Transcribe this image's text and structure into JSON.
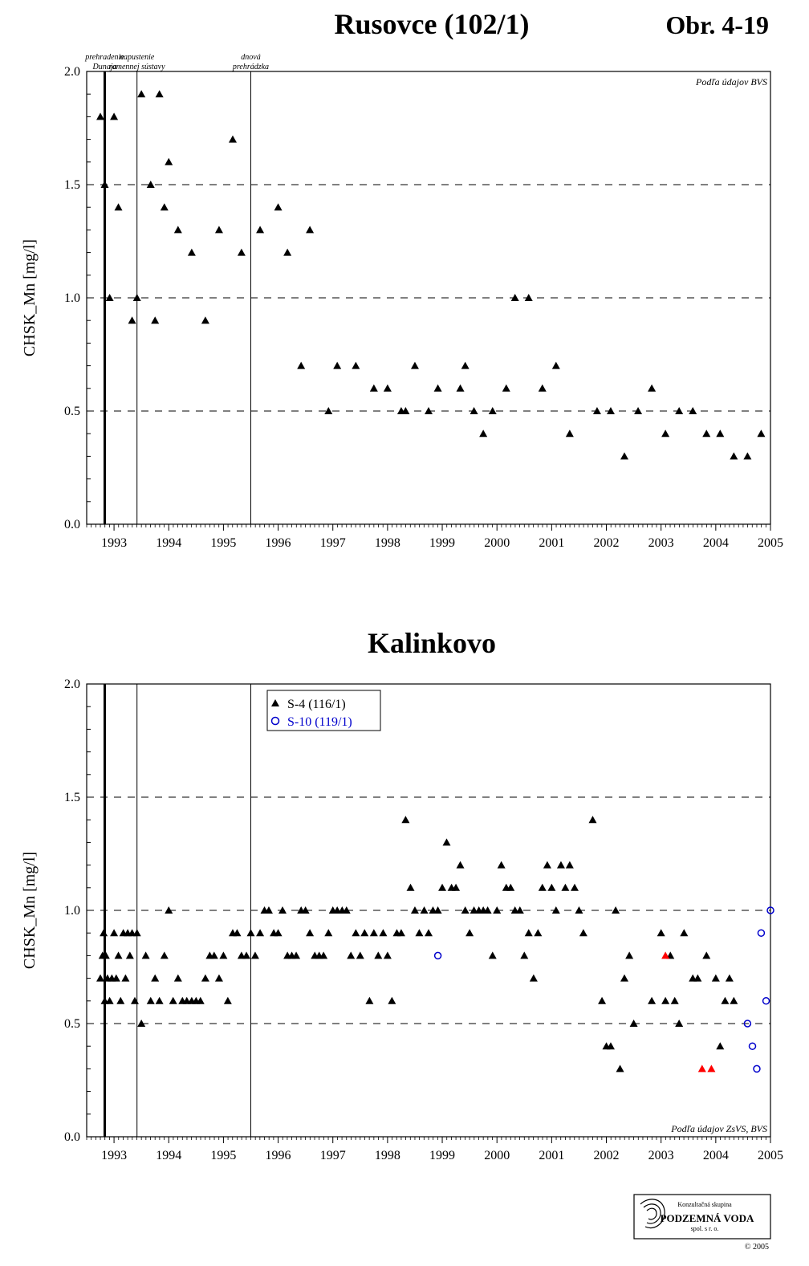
{
  "page": {
    "figure_id": "Obr. 4-19",
    "copyright": "© 2005",
    "logo": {
      "line1": "Konzultačná skupina",
      "line2": "PODZEMNÁ VODA",
      "line3": "spol. s r. o."
    }
  },
  "annotations": [
    {
      "line1": "prehradenie",
      "line2": "Dunaja",
      "x": 1992.83
    },
    {
      "line1": "napustenie",
      "line2": "ramennej sústavy",
      "x": 1993.42
    },
    {
      "line1": "dnová",
      "line2": "prehrádzka",
      "x": 1995.5
    }
  ],
  "chart_data": [
    {
      "type": "scatter",
      "title": "Rusovce (102/1)",
      "xlabel": "",
      "ylabel": "CHSK_Mn [mg/l]",
      "xlim": [
        1992.5,
        2005
      ],
      "ylim": [
        0,
        2
      ],
      "x_ticks": [
        "1993",
        "1994",
        "1995",
        "1996",
        "1997",
        "1998",
        "1999",
        "2000",
        "2001",
        "2002",
        "2003",
        "2004",
        "2005"
      ],
      "y_ticks": [
        "0.0",
        "0.5",
        "1.0",
        "1.5",
        "2.0"
      ],
      "grid": "dashed at 0.5, 1.0, 1.5",
      "source_note": "Podľa údajov BVS",
      "series": [
        {
          "marker": "triangle",
          "color": "#000000",
          "points": [
            [
              1992.75,
              1.8
            ],
            [
              1992.83,
              1.5
            ],
            [
              1992.92,
              1.0
            ],
            [
              1993.0,
              1.8
            ],
            [
              1993.08,
              1.4
            ],
            [
              1993.33,
              0.9
            ],
            [
              1993.42,
              1.0
            ],
            [
              1993.5,
              1.9
            ],
            [
              1993.67,
              1.5
            ],
            [
              1993.75,
              0.9
            ],
            [
              1993.83,
              1.9
            ],
            [
              1993.92,
              1.4
            ],
            [
              1994.0,
              1.6
            ],
            [
              1994.17,
              1.3
            ],
            [
              1994.42,
              1.2
            ],
            [
              1994.67,
              0.9
            ],
            [
              1994.92,
              1.3
            ],
            [
              1995.17,
              1.7
            ],
            [
              1995.33,
              1.2
            ],
            [
              1995.67,
              1.3
            ],
            [
              1996.0,
              1.4
            ],
            [
              1996.17,
              1.2
            ],
            [
              1996.42,
              0.7
            ],
            [
              1996.58,
              1.3
            ],
            [
              1996.92,
              0.5
            ],
            [
              1997.08,
              0.7
            ],
            [
              1997.42,
              0.7
            ],
            [
              1997.75,
              0.6
            ],
            [
              1998.0,
              0.6
            ],
            [
              1998.25,
              0.5
            ],
            [
              1998.33,
              0.5
            ],
            [
              1998.5,
              0.7
            ],
            [
              1998.75,
              0.5
            ],
            [
              1998.92,
              0.6
            ],
            [
              1999.33,
              0.6
            ],
            [
              1999.42,
              0.7
            ],
            [
              1999.58,
              0.5
            ],
            [
              1999.75,
              0.4
            ],
            [
              1999.92,
              0.5
            ],
            [
              2000.17,
              0.6
            ],
            [
              2000.33,
              1.0
            ],
            [
              2000.58,
              1.0
            ],
            [
              2000.83,
              0.6
            ],
            [
              2001.08,
              0.7
            ],
            [
              2001.33,
              0.4
            ],
            [
              2001.83,
              0.5
            ],
            [
              2002.08,
              0.5
            ],
            [
              2002.33,
              0.3
            ],
            [
              2002.58,
              0.5
            ],
            [
              2002.83,
              0.6
            ],
            [
              2003.08,
              0.4
            ],
            [
              2003.33,
              0.5
            ],
            [
              2003.58,
              0.5
            ],
            [
              2003.83,
              0.4
            ],
            [
              2004.08,
              0.4
            ],
            [
              2004.33,
              0.3
            ],
            [
              2004.58,
              0.3
            ],
            [
              2004.83,
              0.4
            ]
          ]
        }
      ]
    },
    {
      "type": "scatter",
      "title": "Kalinkovo",
      "xlabel": "",
      "ylabel": "CHSK_Mn [mg/l]",
      "xlim": [
        1992.5,
        2005
      ],
      "ylim": [
        0,
        2
      ],
      "x_ticks": [
        "1993",
        "1994",
        "1995",
        "1996",
        "1997",
        "1998",
        "1999",
        "2000",
        "2001",
        "2002",
        "2003",
        "2004",
        "2005"
      ],
      "y_ticks": [
        "0.0",
        "0.5",
        "1.0",
        "1.5",
        "2.0"
      ],
      "grid": "dashed at 0.5, 1.0, 1.5",
      "legend_position": "top-left",
      "source_note": "Podľa údajov ZsVS, BVS",
      "series": [
        {
          "name": "S-4 (116/1)",
          "marker": "triangle",
          "color": "#000000",
          "points": [
            [
              1992.75,
              0.7
            ],
            [
              1992.79,
              0.8
            ],
            [
              1992.81,
              0.9
            ],
            [
              1992.83,
              0.6
            ],
            [
              1992.85,
              0.8
            ],
            [
              1992.88,
              0.7
            ],
            [
              1992.92,
              0.6
            ],
            [
              1992.96,
              0.7
            ],
            [
              1993.0,
              0.9
            ],
            [
              1993.04,
              0.7
            ],
            [
              1993.08,
              0.8
            ],
            [
              1993.12,
              0.6
            ],
            [
              1993.17,
              0.9
            ],
            [
              1993.21,
              0.7
            ],
            [
              1993.25,
              0.9
            ],
            [
              1993.29,
              0.8
            ],
            [
              1993.33,
              0.9
            ],
            [
              1993.38,
              0.6
            ],
            [
              1993.42,
              0.9
            ],
            [
              1993.5,
              0.5
            ],
            [
              1993.58,
              0.8
            ],
            [
              1993.67,
              0.6
            ],
            [
              1993.75,
              0.7
            ],
            [
              1993.83,
              0.6
            ],
            [
              1993.92,
              0.8
            ],
            [
              1994.0,
              1.0
            ],
            [
              1994.08,
              0.6
            ],
            [
              1994.17,
              0.7
            ],
            [
              1994.25,
              0.6
            ],
            [
              1994.33,
              0.6
            ],
            [
              1994.42,
              0.6
            ],
            [
              1994.5,
              0.6
            ],
            [
              1994.58,
              0.6
            ],
            [
              1994.67,
              0.7
            ],
            [
              1994.75,
              0.8
            ],
            [
              1994.83,
              0.8
            ],
            [
              1994.92,
              0.7
            ],
            [
              1995.0,
              0.8
            ],
            [
              1995.08,
              0.6
            ],
            [
              1995.17,
              0.9
            ],
            [
              1995.25,
              0.9
            ],
            [
              1995.33,
              0.8
            ],
            [
              1995.42,
              0.8
            ],
            [
              1995.5,
              0.9
            ],
            [
              1995.58,
              0.8
            ],
            [
              1995.67,
              0.9
            ],
            [
              1995.75,
              1.0
            ],
            [
              1995.83,
              1.0
            ],
            [
              1995.92,
              0.9
            ],
            [
              1996.0,
              0.9
            ],
            [
              1996.08,
              1.0
            ],
            [
              1996.17,
              0.8
            ],
            [
              1996.25,
              0.8
            ],
            [
              1996.33,
              0.8
            ],
            [
              1996.42,
              1.0
            ],
            [
              1996.5,
              1.0
            ],
            [
              1996.58,
              0.9
            ],
            [
              1996.67,
              0.8
            ],
            [
              1996.75,
              0.8
            ],
            [
              1996.83,
              0.8
            ],
            [
              1996.92,
              0.9
            ],
            [
              1997.0,
              1.0
            ],
            [
              1997.08,
              1.0
            ],
            [
              1997.17,
              1.0
            ],
            [
              1997.25,
              1.0
            ],
            [
              1997.33,
              0.8
            ],
            [
              1997.42,
              0.9
            ],
            [
              1997.5,
              0.8
            ],
            [
              1997.58,
              0.9
            ],
            [
              1997.67,
              0.6
            ],
            [
              1997.75,
              0.9
            ],
            [
              1997.83,
              0.8
            ],
            [
              1997.92,
              0.9
            ],
            [
              1998.0,
              0.8
            ],
            [
              1998.08,
              0.6
            ],
            [
              1998.17,
              0.9
            ],
            [
              1998.25,
              0.9
            ],
            [
              1998.33,
              1.4
            ],
            [
              1998.42,
              1.1
            ],
            [
              1998.5,
              1.0
            ],
            [
              1998.58,
              0.9
            ],
            [
              1998.67,
              1.0
            ],
            [
              1998.75,
              0.9
            ],
            [
              1998.83,
              1.0
            ],
            [
              1998.92,
              1.0
            ],
            [
              1999.0,
              1.1
            ],
            [
              1999.08,
              1.3
            ],
            [
              1999.17,
              1.1
            ],
            [
              1999.25,
              1.1
            ],
            [
              1999.33,
              1.2
            ],
            [
              1999.42,
              1.0
            ],
            [
              1999.5,
              0.9
            ],
            [
              1999.58,
              1.0
            ],
            [
              1999.67,
              1.0
            ],
            [
              1999.75,
              1.0
            ],
            [
              1999.83,
              1.0
            ],
            [
              1999.92,
              0.8
            ],
            [
              2000.0,
              1.0
            ],
            [
              2000.08,
              1.2
            ],
            [
              2000.17,
              1.1
            ],
            [
              2000.25,
              1.1
            ],
            [
              2000.33,
              1.0
            ],
            [
              2000.42,
              1.0
            ],
            [
              2000.5,
              0.8
            ],
            [
              2000.58,
              0.9
            ],
            [
              2000.67,
              0.7
            ],
            [
              2000.75,
              0.9
            ],
            [
              2000.83,
              1.1
            ],
            [
              2000.92,
              1.2
            ],
            [
              2001.0,
              1.1
            ],
            [
              2001.08,
              1.0
            ],
            [
              2001.17,
              1.2
            ],
            [
              2001.25,
              1.1
            ],
            [
              2001.33,
              1.2
            ],
            [
              2001.42,
              1.1
            ],
            [
              2001.5,
              1.0
            ],
            [
              2001.58,
              0.9
            ],
            [
              2001.75,
              1.4
            ],
            [
              2001.92,
              0.6
            ],
            [
              2002.0,
              0.4
            ],
            [
              2002.08,
              0.4
            ],
            [
              2002.17,
              1.0
            ],
            [
              2002.25,
              0.3
            ],
            [
              2002.33,
              0.7
            ],
            [
              2002.42,
              0.8
            ],
            [
              2002.5,
              0.5
            ],
            [
              2002.83,
              0.6
            ],
            [
              2003.0,
              0.9
            ],
            [
              2003.08,
              0.6
            ],
            [
              2003.17,
              0.8
            ],
            [
              2003.25,
              0.6
            ],
            [
              2003.33,
              0.5
            ],
            [
              2003.42,
              0.9
            ],
            [
              2003.58,
              0.7
            ],
            [
              2003.67,
              0.7
            ],
            [
              2003.83,
              0.8
            ],
            [
              2004.0,
              0.7
            ],
            [
              2004.08,
              0.4
            ],
            [
              2004.17,
              0.6
            ],
            [
              2004.25,
              0.7
            ],
            [
              2004.33,
              0.6
            ]
          ]
        },
        {
          "marker": "triangle",
          "color": "#ff0000",
          "points": [
            [
              2003.08,
              0.8
            ],
            [
              2003.75,
              0.3
            ],
            [
              2003.92,
              0.3
            ]
          ]
        },
        {
          "name": "S-10 (119/1)",
          "marker": "circle",
          "color": "#0000cc",
          "points": [
            [
              1998.92,
              0.8
            ],
            [
              2004.58,
              0.5
            ],
            [
              2004.67,
              0.4
            ],
            [
              2004.75,
              0.3
            ],
            [
              2004.83,
              0.9
            ],
            [
              2004.92,
              0.6
            ],
            [
              2005.0,
              1.0
            ]
          ]
        }
      ]
    }
  ]
}
